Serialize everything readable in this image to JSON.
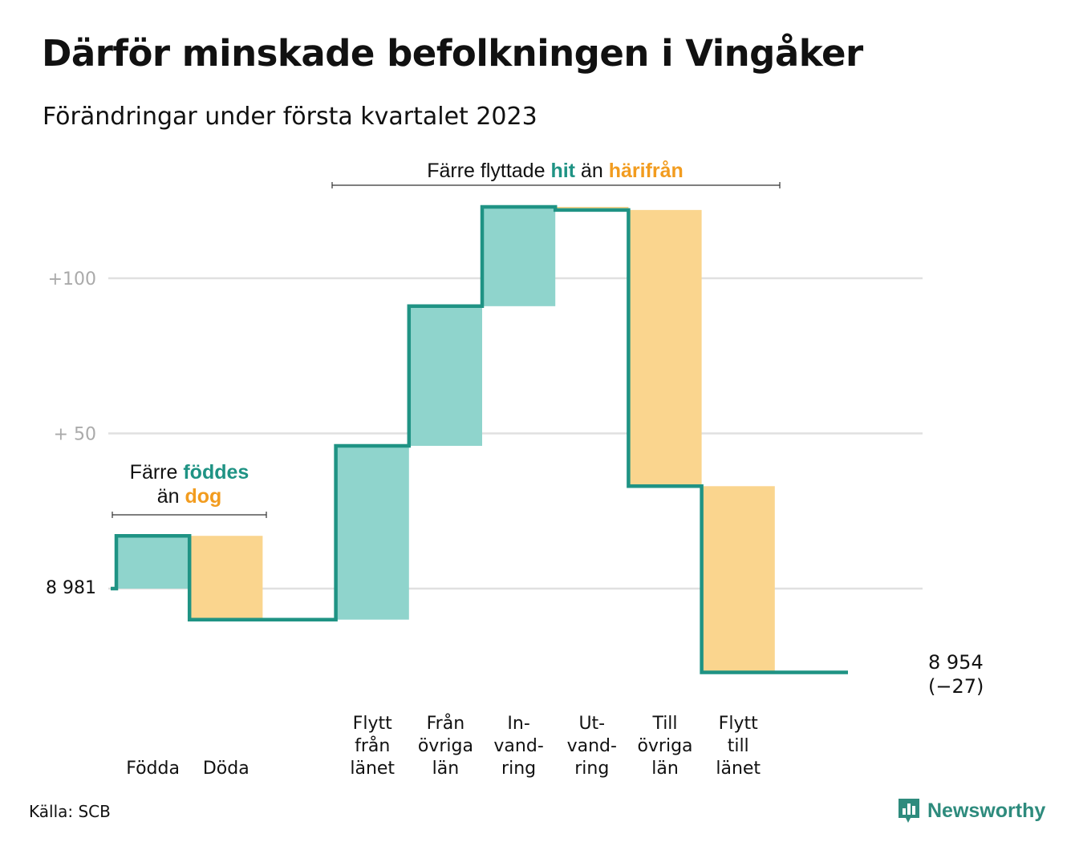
{
  "title": "Därför minskade befolkningen i Vingåker",
  "subtitle": "Förändringar under första kvartalet 2023",
  "source": "Källa: SCB",
  "brand": "Newsworthy",
  "colors": {
    "line": "#1f9384",
    "increase": "#8fd4cc",
    "decrease": "#fad58e",
    "grid": "#e0e0e0",
    "ann_teal": "#1f9384",
    "ann_orange": "#f29c1f"
  },
  "annotations": {
    "births": {
      "line1_pre": "Färre ",
      "line1_hi": "föddes",
      "line2_pre": "än ",
      "line2_hi": "dog"
    },
    "migration": {
      "pre": "Färre flyttade ",
      "hi1": "hit",
      "mid": " än ",
      "hi2": "härifrån"
    }
  },
  "chart_data": {
    "type": "waterfall",
    "start_label": "8 981",
    "start_value": 0,
    "ylim": [
      -27,
      127
    ],
    "yticks": [
      {
        "value": 100,
        "label": "+100"
      },
      {
        "value": 50,
        "label": "+ 50"
      }
    ],
    "grid": true,
    "steps": [
      {
        "label": [
          "Födda"
        ],
        "change": 17
      },
      {
        "label": [
          "Döda"
        ],
        "change": -27
      },
      {
        "label": [],
        "change": 0
      },
      {
        "label": [
          "Flytt",
          "från",
          "länet"
        ],
        "change": 56
      },
      {
        "label": [
          "Från",
          "övriga",
          "län"
        ],
        "change": 45
      },
      {
        "label": [
          "In-",
          "vand-",
          "ring"
        ],
        "change": 32
      },
      {
        "label": [
          "Ut-",
          "vand-",
          "ring"
        ],
        "change": -1
      },
      {
        "label": [
          "Till",
          "övriga",
          "län"
        ],
        "change": -89
      },
      {
        "label": [
          "Flytt",
          "till",
          "länet"
        ],
        "change": -60
      },
      {
        "label": [],
        "change": 0
      }
    ],
    "end_label": [
      "8 954",
      "(−27)"
    ]
  }
}
